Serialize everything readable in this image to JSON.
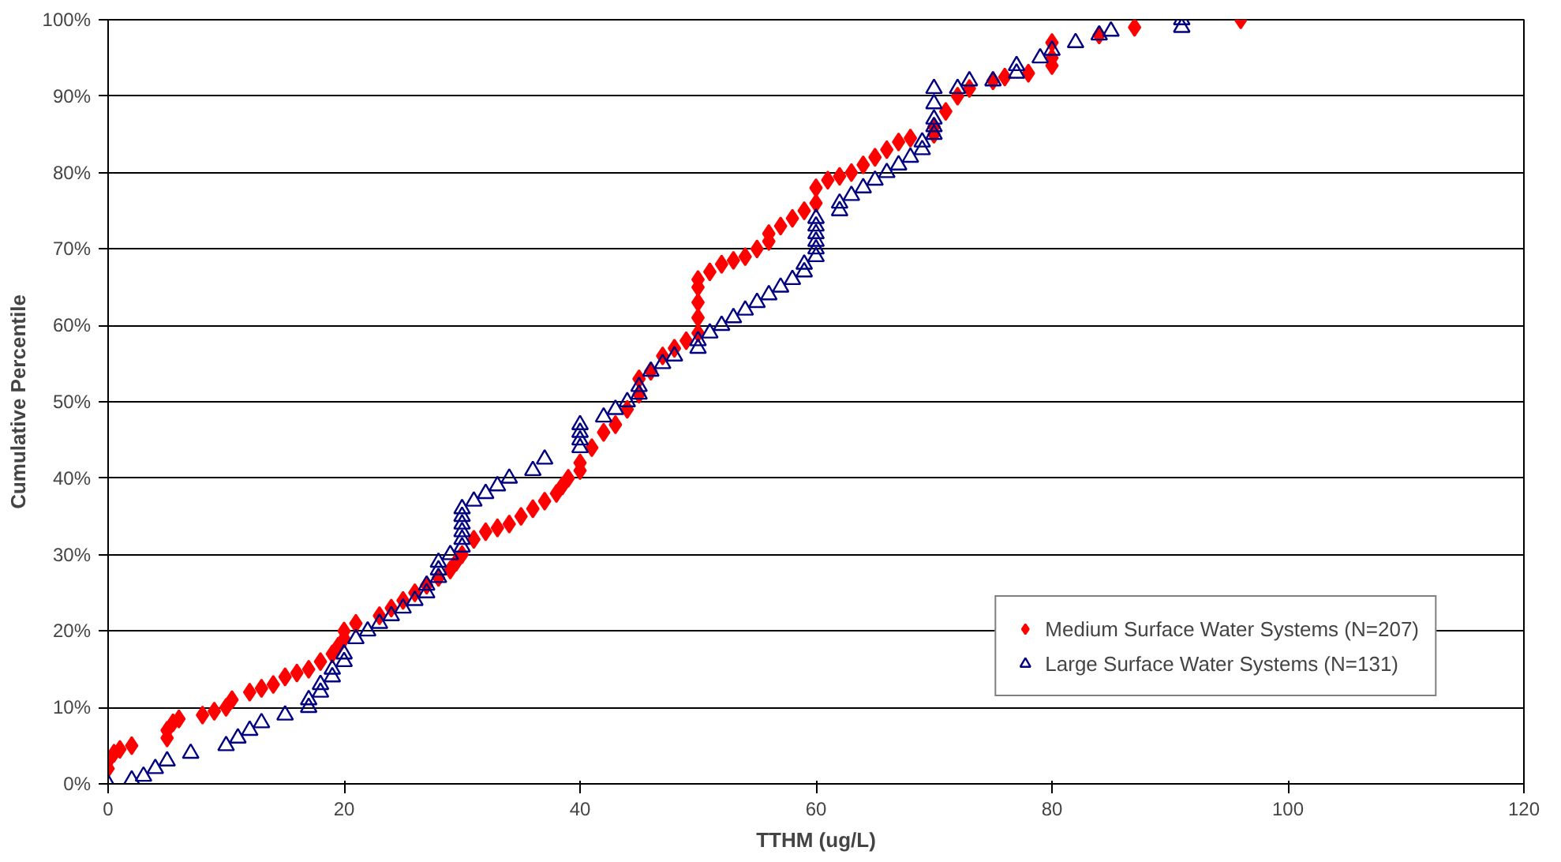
{
  "chart_data": {
    "type": "scatter",
    "xlabel": "TTHM (ug/L)",
    "ylabel": "Cumulative Percentile",
    "xlim": [
      0,
      120
    ],
    "xticks": [
      0,
      20,
      40,
      60,
      80,
      100,
      120
    ],
    "ylim": [
      0,
      100
    ],
    "yticks": [
      {
        "value": 0,
        "label": "0%"
      },
      {
        "value": 10,
        "label": "10%"
      },
      {
        "value": 20,
        "label": "20%"
      },
      {
        "value": 30,
        "label": "30%"
      },
      {
        "value": 40,
        "label": "40%"
      },
      {
        "value": 50,
        "label": "50%"
      },
      {
        "value": 60,
        "label": "60%"
      },
      {
        "value": 70,
        "label": "70%"
      },
      {
        "value": 80,
        "label": "80%"
      },
      {
        "value": 90,
        "label": "90%"
      },
      {
        "value": 100,
        "label": "100%"
      }
    ],
    "grid": "y",
    "legend": "bottom right",
    "series": [
      {
        "name": "Medium Surface Water Systems (N=207)",
        "color": "#ff0000",
        "marker": "diamond",
        "x": [
          0,
          0,
          0.5,
          1,
          2,
          5,
          5,
          5.5,
          6,
          8,
          9,
          10,
          10.5,
          12,
          13,
          14,
          15,
          16,
          17,
          18,
          19,
          19.5,
          20,
          20,
          21,
          23,
          24,
          25,
          26,
          27,
          28,
          29,
          29.5,
          30,
          31,
          32,
          33,
          34,
          35,
          36,
          37,
          38,
          38.5,
          39,
          40,
          40,
          41,
          42,
          43,
          44,
          45,
          45,
          46,
          47,
          48,
          49,
          50,
          50,
          50,
          50,
          50,
          51,
          52,
          53,
          54,
          55,
          56,
          56,
          57,
          58,
          59,
          60,
          60,
          61,
          62,
          63,
          64,
          65,
          66,
          67,
          68,
          70,
          70,
          71,
          72,
          73,
          75,
          76,
          78,
          80,
          80,
          80,
          84,
          87,
          96
        ],
        "values": [
          2,
          3,
          4,
          4.5,
          5,
          6,
          7,
          8,
          8.5,
          9,
          9.5,
          10,
          11,
          12,
          12.5,
          13,
          14,
          14.5,
          15,
          16,
          17,
          18,
          19,
          20,
          21,
          22,
          23,
          24,
          25,
          26,
          27,
          28,
          29,
          30,
          32,
          33,
          33.5,
          34,
          35,
          36,
          37,
          38,
          39,
          40,
          41,
          42,
          44,
          46,
          47,
          49,
          51,
          53,
          54,
          56,
          57,
          58,
          59,
          61,
          63,
          65,
          66,
          67,
          68,
          68.5,
          69,
          70,
          71,
          72,
          73,
          74,
          75,
          76,
          78,
          79,
          79.5,
          80,
          81,
          82,
          83,
          84,
          84.5,
          85,
          86,
          88,
          90,
          91,
          92,
          92.5,
          93,
          94,
          95,
          97,
          98,
          99,
          100
        ]
      },
      {
        "name": "Large Surface Water Systems (N=131)",
        "color": "#000080",
        "marker": "triangle",
        "x": [
          0,
          2,
          3,
          4,
          5,
          7,
          10,
          11,
          12,
          13,
          15,
          17,
          17,
          18,
          18,
          19,
          19,
          20,
          20,
          21,
          22,
          23,
          24,
          25,
          26,
          27,
          27,
          28,
          28,
          28,
          29,
          30,
          30,
          30,
          30,
          30,
          30,
          31,
          32,
          33,
          34,
          36,
          37,
          40,
          40,
          40,
          40,
          42,
          43,
          44,
          45,
          45,
          46,
          47,
          48,
          50,
          50,
          51,
          52,
          53,
          54,
          55,
          56,
          57,
          58,
          59,
          59,
          60,
          60,
          60,
          60,
          60,
          60,
          62,
          62,
          63,
          64,
          65,
          66,
          67,
          68,
          69,
          69,
          70,
          70,
          70,
          70,
          70,
          72,
          73,
          75,
          77,
          77,
          79,
          80,
          82,
          84,
          85,
          91,
          91
        ],
        "values": [
          0,
          0.5,
          1,
          2,
          3,
          4,
          5,
          6,
          7,
          8,
          9,
          10,
          11,
          12,
          13,
          14,
          15,
          16,
          17,
          19,
          20,
          21,
          22,
          23,
          24,
          25,
          26,
          27,
          28,
          29,
          30,
          31,
          32,
          33,
          34,
          35,
          36,
          37,
          38,
          39,
          40,
          41,
          42.5,
          44,
          45,
          46,
          47,
          48,
          49,
          50,
          51,
          52,
          54,
          55,
          56,
          57,
          58,
          59,
          60,
          61,
          62,
          63,
          64,
          65,
          66,
          67,
          68,
          69,
          70,
          71,
          72,
          73,
          74,
          75,
          76,
          77,
          78,
          79,
          80,
          81,
          82,
          83,
          84,
          85,
          86,
          87,
          89,
          91,
          91,
          92,
          92,
          93,
          94,
          95,
          96,
          97,
          98,
          98.5,
          99,
          100
        ]
      }
    ]
  }
}
